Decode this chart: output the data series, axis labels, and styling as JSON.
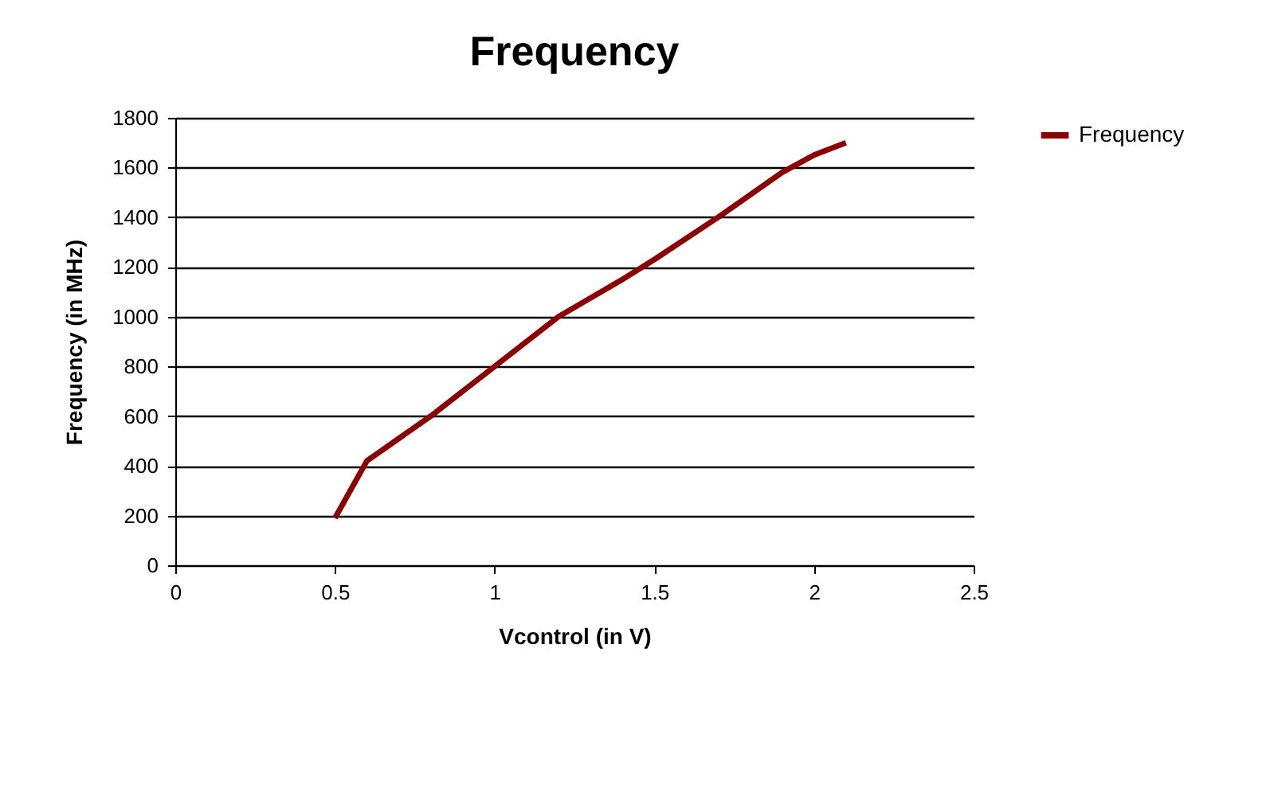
{
  "chart_data": {
    "type": "line",
    "title": "Frequency",
    "xlabel": "Vcontrol (in V)",
    "ylabel": "Frequency (in MHz)",
    "x": [
      0.5,
      0.6,
      0.8,
      1.0,
      1.2,
      1.4,
      1.5,
      1.7,
      1.9,
      2.0,
      2.1
    ],
    "series": [
      {
        "name": "Frequency",
        "color": "#8b0000",
        "values": [
          190,
          420,
          600,
          800,
          1000,
          1150,
          1230,
          1400,
          1580,
          1650,
          1700
        ]
      }
    ],
    "xlim": [
      0,
      2.5
    ],
    "xticks": [
      0,
      0.5,
      1,
      1.5,
      2,
      2.5
    ],
    "ylim": [
      0,
      1800
    ],
    "yticks": [
      0,
      200,
      400,
      600,
      800,
      1000,
      1200,
      1400,
      1600,
      1800
    ],
    "grid": "y",
    "legend": "right",
    "marker": "none",
    "line_style": "solid"
  }
}
